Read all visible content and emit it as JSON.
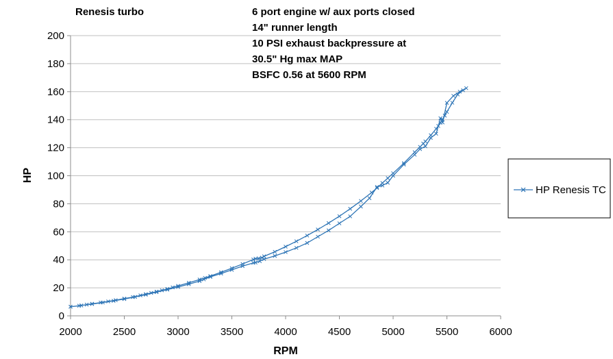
{
  "chart_data": {
    "type": "line",
    "title": "Renesis turbo",
    "annotation_lines": [
      "6 port engine w/ aux ports closed",
      "14\" runner length",
      "10 PSI exhaust backpressure at",
      "30.5\" Hg max MAP",
      "BSFC 0.56 at 5600 RPM"
    ],
    "xlabel": "RPM",
    "ylabel": "HP",
    "xlim": [
      2000,
      6000
    ],
    "ylim": [
      0,
      200
    ],
    "x_ticks": [
      2000,
      2500,
      3000,
      3500,
      4000,
      4500,
      5000,
      5500,
      6000
    ],
    "y_ticks": [
      0,
      20,
      40,
      60,
      80,
      100,
      120,
      140,
      160,
      180,
      200
    ],
    "grid": "horizontal",
    "legend_position": "right",
    "colors": {
      "series": "#2e75b6",
      "grid": "#bfbfbf",
      "axis": "#8c8c8c"
    },
    "series": [
      {
        "name": "HP Renesis TC",
        "marker": "x",
        "x": [
          2000,
          2080,
          2150,
          2200,
          2280,
          2350,
          2420,
          2500,
          2580,
          2650,
          2700,
          2750,
          2800,
          2850,
          2900,
          2950,
          3000,
          3100,
          3200,
          3250,
          3300,
          3400,
          3500,
          3600,
          3700,
          3720,
          3750,
          3780,
          3800,
          3900,
          4000,
          4100,
          4200,
          4300,
          4400,
          4500,
          4600,
          4700,
          4800,
          4850,
          4900,
          4950,
          5000,
          5100,
          5200,
          5250,
          5280,
          5300,
          5350,
          5400,
          5420,
          5440,
          5460,
          5480,
          5500,
          5550,
          5600,
          5650,
          5680,
          5620,
          5560,
          5500,
          5460,
          5440,
          5400,
          5350,
          5300,
          5250,
          5200,
          5100,
          5000,
          4950,
          4900,
          4850,
          4780,
          4700,
          4600,
          4500,
          4400,
          4300,
          4200,
          4100,
          4000,
          3900,
          3800,
          3760,
          3720,
          3700,
          3600,
          3500,
          3400,
          3300,
          3240,
          3200,
          3100,
          3000,
          2900,
          2800,
          2700,
          2600,
          2500,
          2400,
          2300,
          2200,
          2100,
          2000
        ],
        "y": [
          6.5,
          7.2,
          8.0,
          8.6,
          9.5,
          10.3,
          11.2,
          12.3,
          13.4,
          14.6,
          15.5,
          16.4,
          17.3,
          18.2,
          19.2,
          20.3,
          21.4,
          23.6,
          25.9,
          27.1,
          28.4,
          31.1,
          34.0,
          37.0,
          40.2,
          40.8,
          41.0,
          41.5,
          42.5,
          45.7,
          49.4,
          53.2,
          57.3,
          61.6,
          66.2,
          71.1,
          76.4,
          82.0,
          88.0,
          91.3,
          94.8,
          98.3,
          101.8,
          109.0,
          116.8,
          120.6,
          123.0,
          124.5,
          128.9,
          133.5,
          135.5,
          137.8,
          140.2,
          142.9,
          145.6,
          152.1,
          158.0,
          161.0,
          162.5,
          160.0,
          157.0,
          152.0,
          138.0,
          141.0,
          130.0,
          127.0,
          121.0,
          119.0,
          115.0,
          108.0,
          100.0,
          95.0,
          93.0,
          92.0,
          84.0,
          78.0,
          71.0,
          66.0,
          61.0,
          56.5,
          52.0,
          48.5,
          45.5,
          42.8,
          40.5,
          39.0,
          38.0,
          37.8,
          35.5,
          32.8,
          30.2,
          27.8,
          26.0,
          24.8,
          22.6,
          20.6,
          18.7,
          16.9,
          15.1,
          13.5,
          12.0,
          10.7,
          9.5,
          8.4,
          7.4,
          6.5
        ]
      }
    ]
  }
}
